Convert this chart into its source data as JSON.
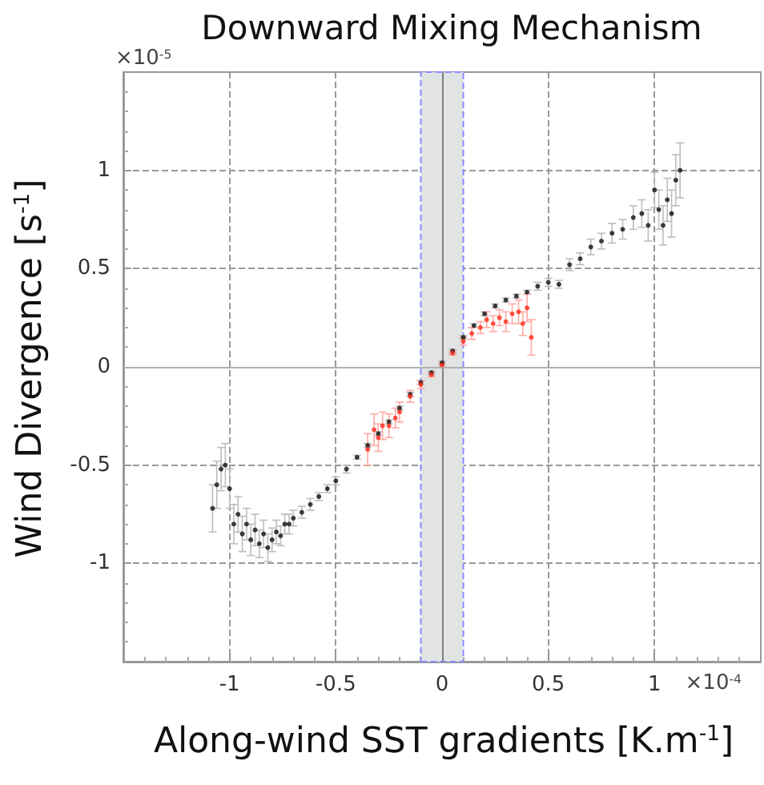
{
  "chart_data": {
    "type": "scatter",
    "title": "Downward Mixing Mechanism",
    "xlabel": "Along-wind SST gradients [K.m$^{-1}$]",
    "ylabel": "Wind Divergence [s$^{-1}$]",
    "annotations": [
      "×10$^{-5}$",
      "×10$^{-4}$"
    ],
    "xlim": [
      -1.5,
      1.5
    ],
    "ylim": [
      -1.5,
      1.5
    ],
    "xticks": [
      -1,
      -0.5,
      0,
      0.5,
      1
    ],
    "yticks": [
      -1,
      -0.5,
      0,
      0.5,
      1
    ],
    "grid": true,
    "marker": "circle",
    "ref_lines": [
      {
        "axis": "x",
        "value": 0,
        "color": "#808080"
      },
      {
        "axis": "y",
        "value": 0,
        "color": "#b0b0b0"
      }
    ],
    "bands": [
      {
        "axis": "x",
        "from": -0.1,
        "to": 0.1,
        "color": "#e2e3e3"
      }
    ],
    "series": [
      {
        "color": "#101010",
        "x": [
          -1.08,
          -1.06,
          -1.04,
          -1.02,
          -1.0,
          -0.98,
          -0.96,
          -0.94,
          -0.92,
          -0.9,
          -0.88,
          -0.86,
          -0.84,
          -0.82,
          -0.8,
          -0.78,
          -0.76,
          -0.74,
          -0.72,
          -0.7,
          -0.66,
          -0.62,
          -0.58,
          -0.54,
          -0.5,
          -0.45,
          -0.4,
          -0.35,
          -0.3,
          -0.25,
          -0.2,
          -0.15,
          -0.1,
          -0.05,
          0,
          0.05,
          0.1,
          0.15,
          0.2,
          0.25,
          0.3,
          0.35,
          0.4,
          0.45,
          0.5,
          0.55,
          0.6,
          0.65,
          0.7,
          0.75,
          0.8,
          0.85,
          0.9,
          0.94,
          0.97,
          1.0,
          1.02,
          1.04,
          1.06,
          1.08,
          1.1,
          1.12
        ],
        "values": [
          -0.72,
          -0.6,
          -0.52,
          -0.5,
          -0.62,
          -0.8,
          -0.75,
          -0.85,
          -0.8,
          -0.88,
          -0.83,
          -0.9,
          -0.85,
          -0.92,
          -0.88,
          -0.84,
          -0.86,
          -0.8,
          -0.8,
          -0.77,
          -0.74,
          -0.7,
          -0.66,
          -0.62,
          -0.58,
          -0.52,
          -0.46,
          -0.4,
          -0.34,
          -0.28,
          -0.21,
          -0.14,
          -0.08,
          -0.03,
          0.02,
          0.08,
          0.15,
          0.21,
          0.27,
          0.31,
          0.34,
          0.36,
          0.38,
          0.41,
          0.43,
          0.42,
          0.52,
          0.55,
          0.61,
          0.64,
          0.68,
          0.7,
          0.76,
          0.78,
          0.72,
          0.9,
          0.8,
          0.72,
          0.85,
          0.78,
          0.95,
          1.0
        ],
        "errors": [
          0.12,
          0.12,
          0.11,
          0.11,
          0.1,
          0.1,
          0.09,
          0.09,
          0.08,
          0.08,
          0.08,
          0.07,
          0.07,
          0.07,
          0.06,
          0.06,
          0.05,
          0.05,
          0.05,
          0.04,
          0.03,
          0.03,
          0.02,
          0.02,
          0.02,
          0.02,
          0.01,
          0.01,
          0.01,
          0.01,
          0.01,
          0.01,
          0.01,
          0.01,
          0.01,
          0.01,
          0.01,
          0.01,
          0.01,
          0.01,
          0.01,
          0.01,
          0.01,
          0.02,
          0.02,
          0.02,
          0.03,
          0.03,
          0.04,
          0.04,
          0.05,
          0.05,
          0.06,
          0.07,
          0.08,
          0.09,
          0.1,
          0.1,
          0.11,
          0.12,
          0.13,
          0.14
        ]
      },
      {
        "color": "#ff2a1a",
        "x": [
          -0.35,
          -0.32,
          -0.3,
          -0.28,
          -0.25,
          -0.22,
          -0.2,
          -0.15,
          -0.1,
          -0.05,
          0,
          0.05,
          0.1,
          0.14,
          0.18,
          0.21,
          0.24,
          0.27,
          0.3,
          0.33,
          0.36,
          0.38,
          0.4,
          0.42
        ],
        "values": [
          -0.42,
          -0.32,
          -0.36,
          -0.3,
          -0.3,
          -0.26,
          -0.23,
          -0.15,
          -0.09,
          -0.04,
          0.01,
          0.07,
          0.13,
          0.17,
          0.2,
          0.24,
          0.22,
          0.25,
          0.23,
          0.27,
          0.28,
          0.22,
          0.3,
          0.15
        ],
        "errors": [
          0.08,
          0.08,
          0.07,
          0.07,
          0.06,
          0.05,
          0.05,
          0.03,
          0.02,
          0.01,
          0.01,
          0.01,
          0.02,
          0.03,
          0.03,
          0.04,
          0.04,
          0.04,
          0.05,
          0.05,
          0.06,
          0.06,
          0.07,
          0.09
        ]
      }
    ]
  }
}
